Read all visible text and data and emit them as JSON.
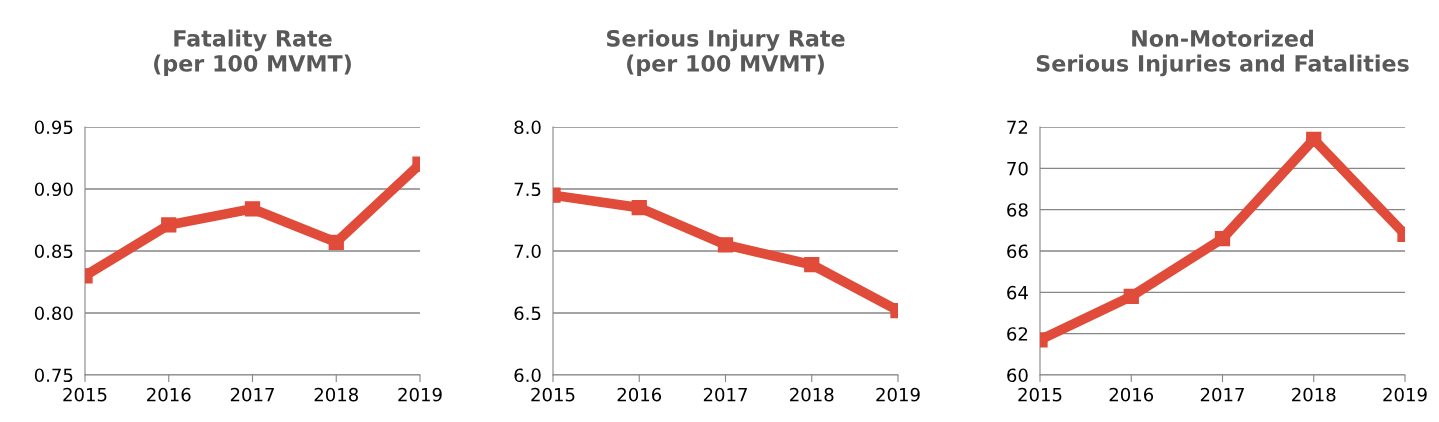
{
  "chart_data": [
    {
      "type": "line",
      "title": "Fatality Rate\n(per 100 MVMT)",
      "categories": [
        "2015",
        "2016",
        "2017",
        "2018",
        "2019"
      ],
      "series": [
        {
          "color": "#e04b3a",
          "values": [
            0.83,
            0.871,
            0.884,
            0.857,
            0.92
          ]
        }
      ],
      "ylim": [
        0.75,
        0.95
      ],
      "yticks": [
        {
          "value": 0.75,
          "label": "0.75"
        },
        {
          "value": 0.8,
          "label": "0.80"
        },
        {
          "value": 0.85,
          "label": "0.85"
        },
        {
          "value": 0.9,
          "label": "0.90"
        },
        {
          "value": 0.95,
          "label": "0.95"
        }
      ],
      "grid": "y",
      "legend": false,
      "marker": "square",
      "line_style": "solid"
    },
    {
      "type": "line",
      "title": "Serious Injury Rate\n(per 100 MVMT)",
      "categories": [
        "2015",
        "2016",
        "2017",
        "2018",
        "2019"
      ],
      "series": [
        {
          "color": "#e04b3a",
          "values": [
            7.45,
            7.35,
            7.05,
            6.89,
            6.52
          ]
        }
      ],
      "ylim": [
        6.0,
        8.0
      ],
      "yticks": [
        {
          "value": 6.0,
          "label": "6.0"
        },
        {
          "value": 6.5,
          "label": "6.5"
        },
        {
          "value": 7.0,
          "label": "7.0"
        },
        {
          "value": 7.5,
          "label": "7.5"
        },
        {
          "value": 8.0,
          "label": "8.0"
        }
      ],
      "grid": "y",
      "legend": false,
      "marker": "square",
      "line_style": "solid"
    },
    {
      "type": "line",
      "title": "Non-Motorized\nSerious Injuries and Fatalities",
      "categories": [
        "2015",
        "2016",
        "2017",
        "2018",
        "2019"
      ],
      "series": [
        {
          "color": "#e04b3a",
          "values": [
            61.7,
            63.8,
            66.6,
            71.4,
            66.8
          ]
        }
      ],
      "ylim": [
        60,
        72
      ],
      "yticks": [
        60,
        62,
        64,
        66,
        68,
        70,
        72
      ],
      "grid": "y",
      "legend": false,
      "marker": "square",
      "line_style": "solid"
    }
  ]
}
